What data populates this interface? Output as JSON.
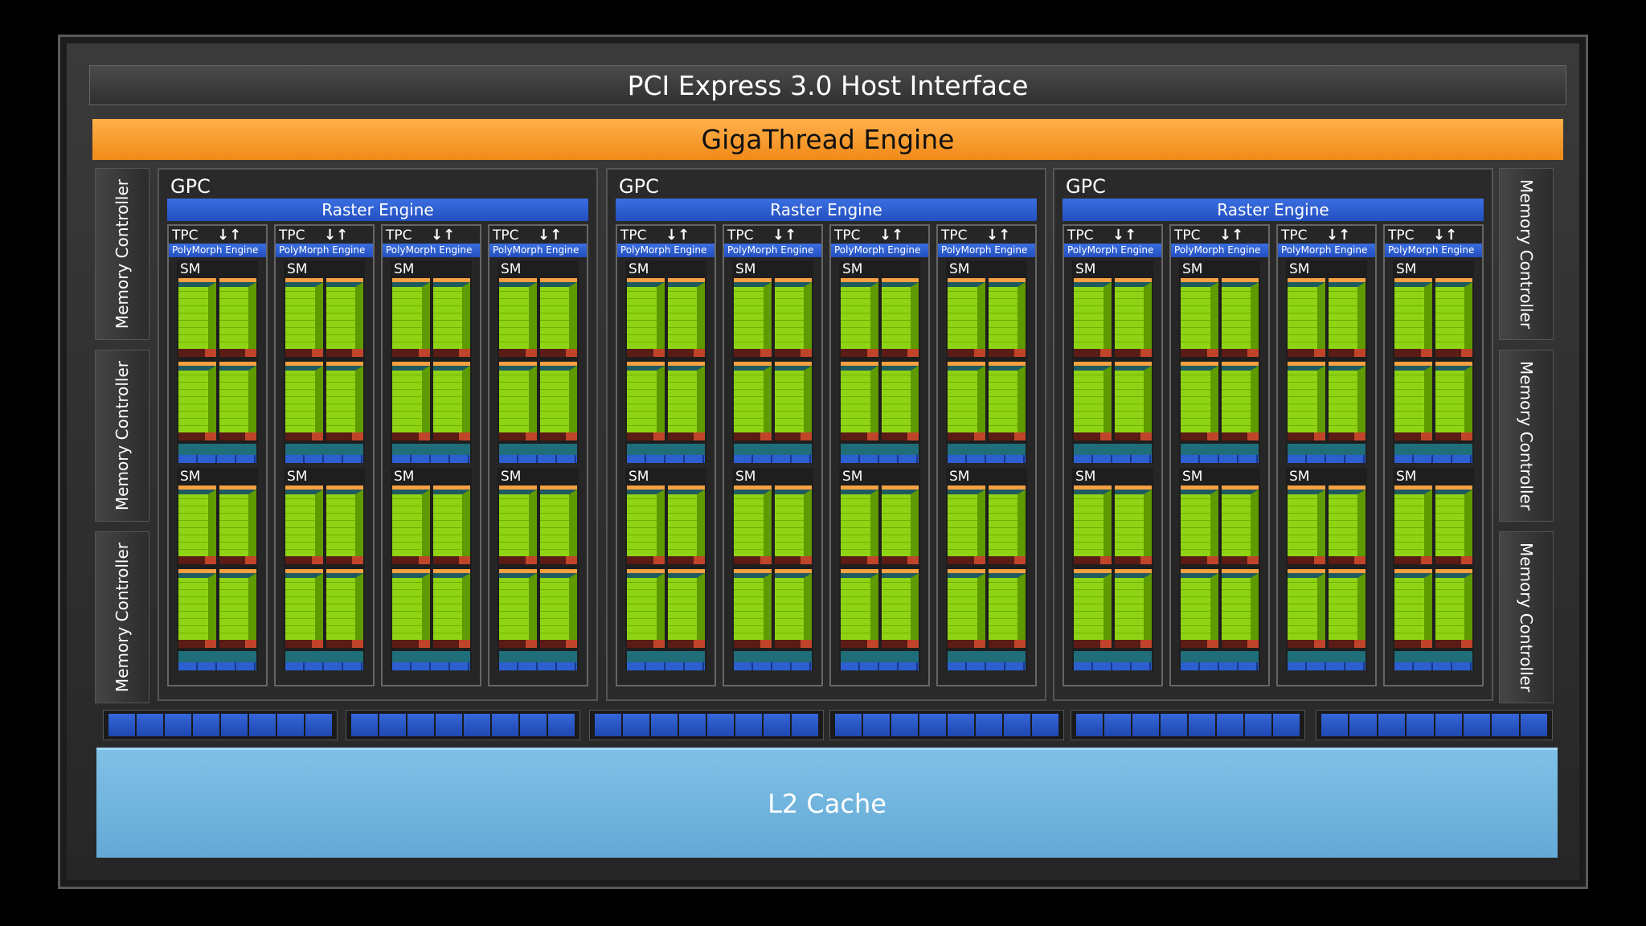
{
  "pci": "PCI Express 3.0 Host Interface",
  "gigathread": "GigaThread Engine",
  "memory_controllers": {
    "left": [
      "Memory Controller",
      "Memory Controller",
      "Memory Controller"
    ],
    "right": [
      "Memory Controller",
      "Memory Controller",
      "Memory Controller"
    ]
  },
  "gpcs": [
    {
      "label": "GPC",
      "raster": "Raster Engine",
      "tpcs": [
        {
          "label": "TPC",
          "poly": "PolyMorph Engine",
          "sms": [
            "SM",
            "SM"
          ]
        },
        {
          "label": "TPC",
          "poly": "PolyMorph Engine",
          "sms": [
            "SM",
            "SM"
          ]
        },
        {
          "label": "TPC",
          "poly": "PolyMorph Engine",
          "sms": [
            "SM",
            "SM"
          ]
        },
        {
          "label": "TPC",
          "poly": "PolyMorph Engine",
          "sms": [
            "SM",
            "SM"
          ]
        }
      ]
    },
    {
      "label": "GPC",
      "raster": "Raster Engine",
      "tpcs": [
        {
          "label": "TPC",
          "poly": "PolyMorph Engine",
          "sms": [
            "SM",
            "SM"
          ]
        },
        {
          "label": "TPC",
          "poly": "PolyMorph Engine",
          "sms": [
            "SM",
            "SM"
          ]
        },
        {
          "label": "TPC",
          "poly": "PolyMorph Engine",
          "sms": [
            "SM",
            "SM"
          ]
        },
        {
          "label": "TPC",
          "poly": "PolyMorph Engine",
          "sms": [
            "SM",
            "SM"
          ]
        }
      ]
    },
    {
      "label": "GPC",
      "raster": "Raster Engine",
      "tpcs": [
        {
          "label": "TPC",
          "poly": "PolyMorph Engine",
          "sms": [
            "SM",
            "SM"
          ]
        },
        {
          "label": "TPC",
          "poly": "PolyMorph Engine",
          "sms": [
            "SM",
            "SM"
          ]
        },
        {
          "label": "TPC",
          "poly": "PolyMorph Engine",
          "sms": [
            "SM",
            "SM"
          ]
        },
        {
          "label": "TPC",
          "poly": "PolyMorph Engine",
          "sms": [
            "SM",
            "SM"
          ]
        }
      ]
    }
  ],
  "l2": "L2 Cache",
  "colors": {
    "gigathread": "#f5a030",
    "engine_blue": "#2d5fd0",
    "core_green": "#8fd414",
    "l2": "#6fb4dc"
  }
}
